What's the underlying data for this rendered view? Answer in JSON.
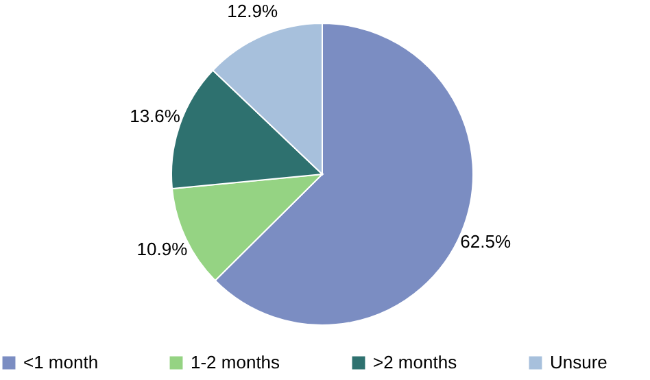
{
  "chart_data": {
    "type": "pie",
    "categories": [
      "<1 month",
      "1-2 months",
      ">2 months",
      "Unsure"
    ],
    "values": [
      62.5,
      10.9,
      13.6,
      12.9
    ],
    "value_labels": [
      "62.5%",
      "10.9%",
      "13.6%",
      "12.9%"
    ],
    "colors": [
      "#7b8dc2",
      "#95d383",
      "#2e716f",
      "#a7c0dc"
    ],
    "legend": "bottom"
  }
}
